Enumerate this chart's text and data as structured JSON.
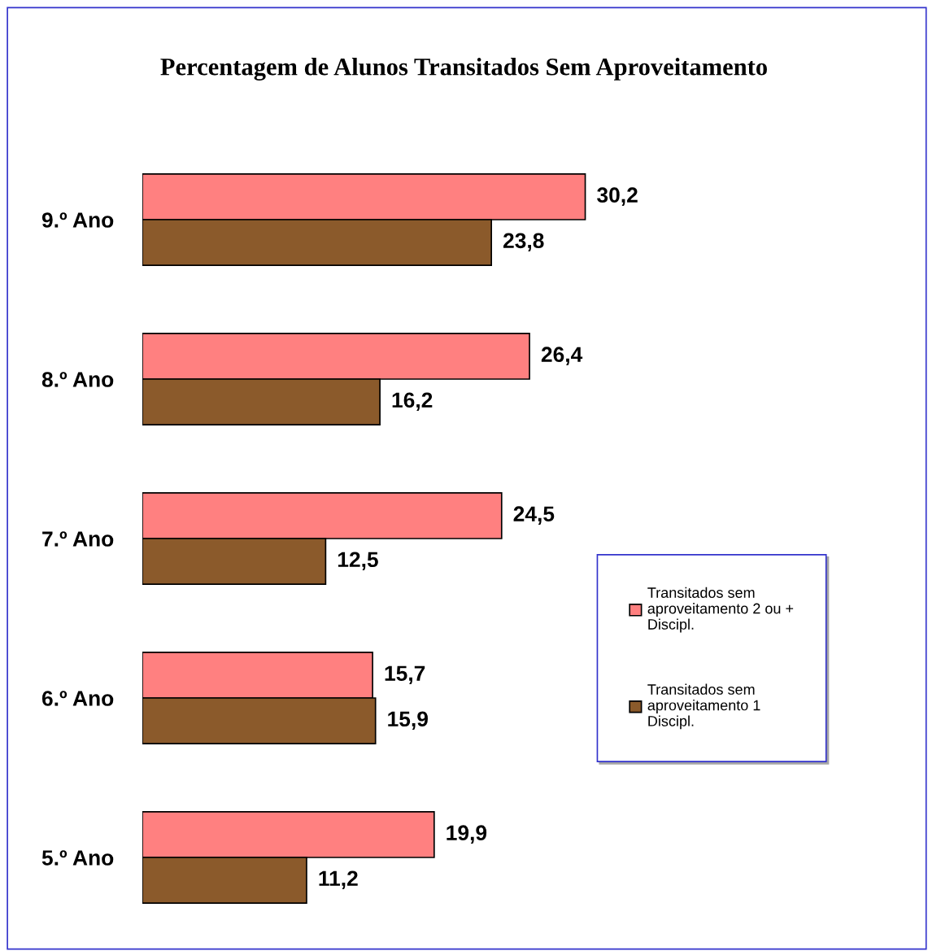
{
  "chart_data": {
    "type": "bar",
    "orientation": "horizontal",
    "title": "Percentagem de Alunos Transitados Sem Aproveitamento",
    "categories": [
      "9.º Ano",
      "8.º Ano",
      "7.º Ano",
      "6.º Ano",
      "5.º Ano"
    ],
    "series": [
      {
        "name": "Transitados sem\naproveitamento 2 ou +\nDiscipl.",
        "color": "#ff8080",
        "values": [
          30.2,
          26.4,
          24.5,
          15.7,
          19.9
        ],
        "value_labels": [
          "30,2",
          "26,4",
          "24,5",
          "15,7",
          "19,9"
        ]
      },
      {
        "name": "Transitados sem\naproveitamento 1\nDiscipl.",
        "color": "#8b5a2b",
        "values": [
          23.8,
          16.2,
          12.5,
          15.9,
          11.2
        ],
        "value_labels": [
          "23,8",
          "16,2",
          "12,5",
          "15,9",
          "11,2"
        ]
      }
    ],
    "legend": "right"
  }
}
